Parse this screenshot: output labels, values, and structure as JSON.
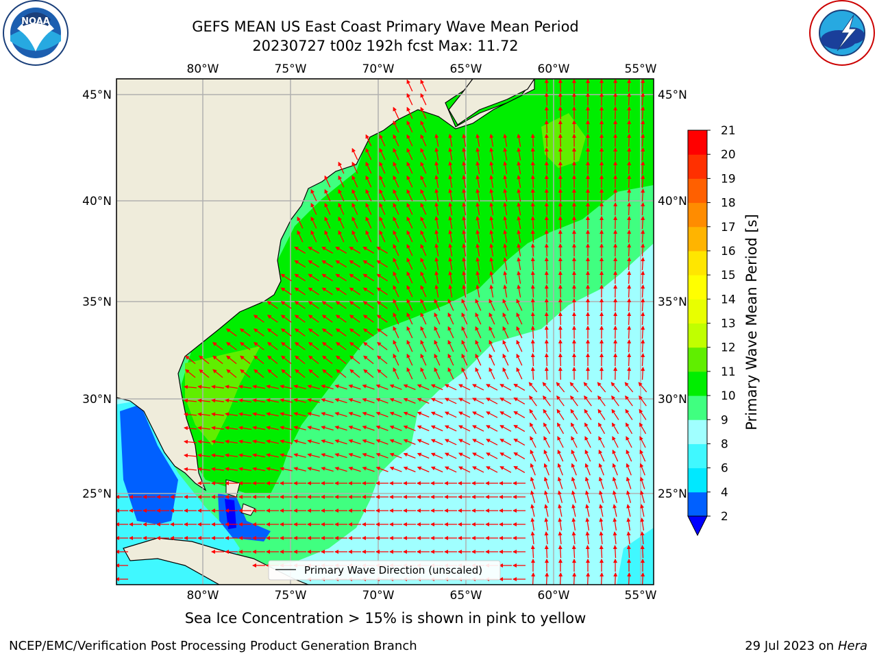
{
  "header": {
    "title_line1": "GEFS MEAN US East Coast Primary Wave Mean Period",
    "title_line2": "20230727 t00z 192h fcst   Max: 11.72"
  },
  "logos": {
    "left": {
      "name": "noaa-logo",
      "text": "NOAA",
      "ring_text": "NATIONAL OCEANIC AND ATMOSPHERIC ADMINISTRATION · U.S. DEPARTMENT OF COMMERCE"
    },
    "right": {
      "name": "nws-logo",
      "ring_text": "NATIONAL WEATHER SERVICE"
    }
  },
  "map": {
    "lon_ticks": [
      "80°W",
      "75°W",
      "70°W",
      "65°W",
      "60°W",
      "55°W"
    ],
    "lat_ticks": [
      "45°N",
      "40°N",
      "35°N",
      "30°N",
      "25°N"
    ],
    "legend_label": "Primary Wave Direction (unscaled)",
    "colors": {
      "land": "#efecdb",
      "grid": "#b0b0b0",
      "arrow": "#ff0000"
    }
  },
  "colorbar": {
    "label": "Primary Wave Mean Period [s]",
    "ticks": [
      "2",
      "4",
      "6",
      "8",
      "9",
      "10",
      "11",
      "12",
      "13",
      "14",
      "15",
      "16",
      "17",
      "18",
      "19",
      "20",
      "21"
    ],
    "colors": [
      "#0060ff",
      "#00e8ff",
      "#40f8ff",
      "#a0ffff",
      "#40ff80",
      "#00ee00",
      "#60ee00",
      "#c0ff00",
      "#e8ff00",
      "#ffff00",
      "#ffe600",
      "#ffb400",
      "#ff8c00",
      "#ff6000",
      "#ff3000",
      "#ff0000"
    ],
    "extend_color": "#0000ff"
  },
  "footer": {
    "note": "Sea Ice Concentration > 15% is shown in pink to yellow",
    "credit": "NCEP/EMC/Verification Post Processing Product Generation Branch",
    "date": "29 Jul 2023 on ",
    "host": "Hera"
  }
}
